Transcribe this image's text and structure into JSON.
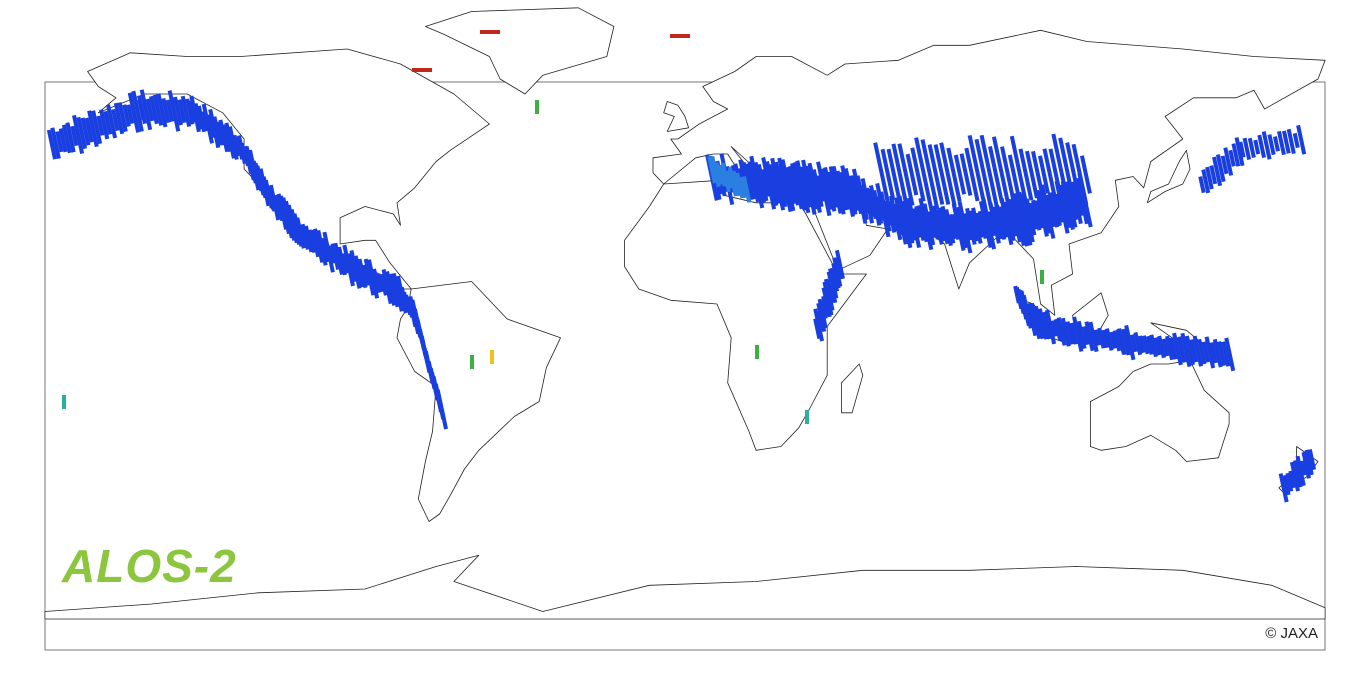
{
  "logo": {
    "text": "ALOS-2"
  },
  "credit": {
    "text": "© JAXA"
  }
}
